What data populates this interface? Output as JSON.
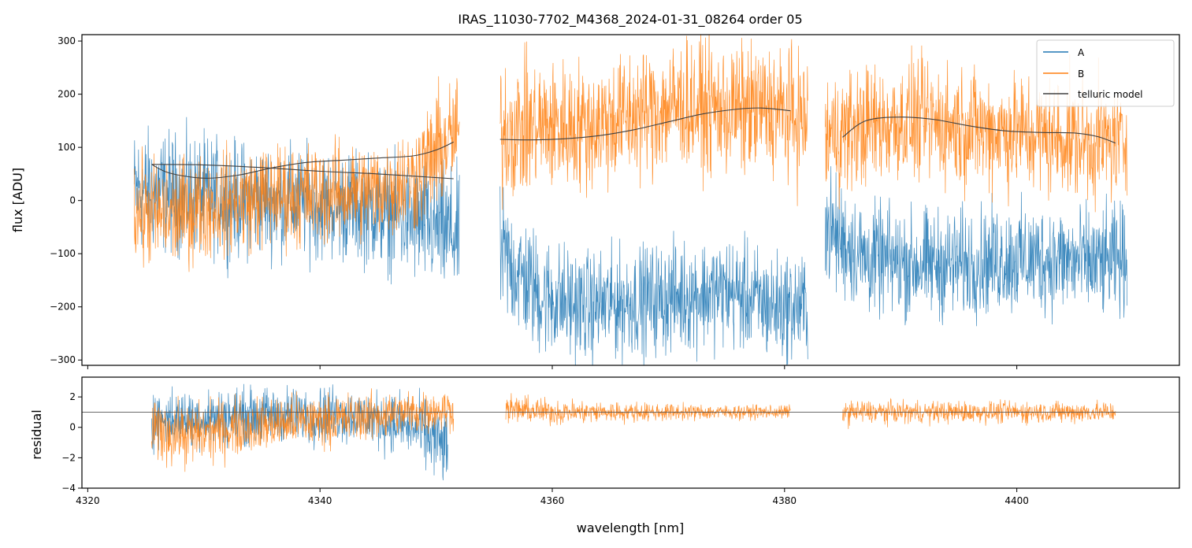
{
  "chart_data": {
    "type": "line",
    "title": "IRAS_11030-7702_M4368_2024-01-31_08264  order 05",
    "xlabel": "wavelength [nm]",
    "top_panel": {
      "ylabel": "flux [ADU]",
      "ylim": [
        -310,
        312
      ],
      "yticks": [
        300,
        200,
        100,
        0,
        -100,
        -200,
        -300
      ],
      "ytick_labels": [
        "300",
        "200",
        "100",
        "0",
        "−100",
        "−200",
        "−300"
      ],
      "legend": {
        "location": "top-right",
        "entries": [
          {
            "label": "A",
            "color": "#1f77b4"
          },
          {
            "label": "B",
            "color": "#ff7f0e"
          },
          {
            "label": "telluric model",
            "color": "#404040"
          }
        ]
      },
      "series": [
        {
          "name": "A",
          "color": "#1f77b4",
          "segments": [
            {
              "x": [
                4324.0,
                4327.0,
                4330.0,
                4333.0,
                4336.0,
                4339.0,
                4342.0,
                4345.0,
                4348.0,
                4350.0,
                4352.0
              ],
              "center": [
                20,
                15,
                10,
                0,
                0,
                -5,
                -10,
                -20,
                -40,
                -50,
                -70
              ],
              "spread": [
                110,
                110,
                105,
                105,
                100,
                100,
                100,
                100,
                110,
                120,
                120
              ]
            },
            {
              "x": [
                4355.5,
                4359.0,
                4363.0,
                4367.0,
                4371.0,
                4375.0,
                4379.0,
                4382.0
              ],
              "center": [
                -100,
                -180,
                -200,
                -190,
                -180,
                -170,
                -200,
                -200
              ],
              "spread": [
                120,
                110,
                100,
                100,
                100,
                100,
                100,
                100
              ]
            },
            {
              "x": [
                4383.5,
                4387.0,
                4391.0,
                4395.0,
                4399.0,
                4403.0,
                4407.0,
                4409.5
              ],
              "center": [
                -50,
                -110,
                -120,
                -120,
                -110,
                -110,
                -120,
                -110
              ],
              "spread": [
                110,
                100,
                100,
                100,
                100,
                100,
                100,
                100
              ]
            }
          ]
        },
        {
          "name": "B",
          "color": "#ff7f0e",
          "segments": [
            {
              "x": [
                4324.0,
                4327.0,
                4330.0,
                4333.0,
                4336.0,
                4339.0,
                4342.0,
                4345.0,
                4348.0,
                4350.0,
                4352.0
              ],
              "center": [
                -20,
                -30,
                -10,
                0,
                10,
                10,
                15,
                20,
                40,
                90,
                130
              ],
              "spread": [
                100,
                100,
                95,
                95,
                95,
                95,
                90,
                90,
                100,
                110,
                110
              ]
            },
            {
              "x": [
                4355.5,
                4359.0,
                4363.0,
                4367.0,
                4371.0,
                4375.0,
                4379.0,
                4382.0
              ],
              "center": [
                130,
                140,
                140,
                160,
                180,
                170,
                170,
                150
              ],
              "spread": [
                130,
                120,
                120,
                120,
                120,
                120,
                120,
                120
              ]
            },
            {
              "x": [
                4383.5,
                4387.0,
                4391.0,
                4395.0,
                4399.0,
                4403.0,
                4407.0,
                4409.5
              ],
              "center": [
                120,
                140,
                150,
                140,
                130,
                120,
                110,
                110
              ],
              "spread": [
                120,
                110,
                110,
                110,
                110,
                110,
                110,
                100
              ]
            }
          ]
        }
      ],
      "telluric_models": [
        {
          "x": [
            4325.5,
            4327.0,
            4330.0,
            4333.0,
            4336.0,
            4339.0,
            4342.0,
            4345.0,
            4348.0,
            4350.0,
            4351.5
          ],
          "y": [
            68,
            52,
            42,
            48,
            62,
            72,
            76,
            80,
            84,
            95,
            110
          ]
        },
        {
          "x": [
            4325.5,
            4330.0,
            4335.0,
            4340.0,
            4345.0,
            4351.5
          ],
          "y": [
            68,
            67,
            62,
            55,
            50,
            41
          ]
        },
        {
          "x": [
            4355.5,
            4358.0,
            4361.0,
            4364.0,
            4367.0,
            4370.0,
            4373.0,
            4376.0,
            4378.0,
            4380.5
          ],
          "y": [
            115,
            114,
            116,
            122,
            133,
            148,
            163,
            172,
            174,
            169
          ]
        },
        {
          "x": [
            4385.0,
            4387.0,
            4390.0,
            4393.0,
            4396.0,
            4399.0,
            4402.0,
            4405.0,
            4407.0,
            4408.5
          ],
          "y": [
            119,
            150,
            157,
            152,
            140,
            131,
            128,
            127,
            120,
            108
          ]
        }
      ]
    },
    "bottom_panel": {
      "ylabel": "residual",
      "ylim": [
        -4,
        3.3
      ],
      "yticks": [
        2,
        0,
        -2,
        -4
      ],
      "ytick_labels": [
        "2",
        "0",
        "−2",
        "−4"
      ],
      "reference_line": 1,
      "series": [
        {
          "name": "A",
          "color": "#1f77b4",
          "segments": [
            {
              "x": [
                4325.5,
                4329.0,
                4333.0,
                4337.0,
                4341.0,
                4345.0,
                4348.0,
                4350.0,
                4351.0
              ],
              "center": [
                0.5,
                0.6,
                0.7,
                0.8,
                0.9,
                0.5,
                0.0,
                -0.8,
                -1.5
              ],
              "spread": [
                1.8,
                1.8,
                1.8,
                1.8,
                1.8,
                1.8,
                2.0,
                2.4,
                2.6
              ]
            }
          ]
        },
        {
          "name": "B",
          "color": "#ff7f0e",
          "segments": [
            {
              "x": [
                4325.5,
                4329.0,
                4333.0,
                4337.0,
                4341.0,
                4345.0,
                4348.0,
                4351.5
              ],
              "center": [
                -0.2,
                -0.5,
                0.0,
                0.3,
                0.5,
                0.8,
                1.0,
                1.2
              ],
              "spread": [
                2.0,
                2.0,
                1.8,
                1.7,
                1.6,
                1.5,
                1.4,
                1.3
              ]
            },
            {
              "x": [
                4356.0,
                4360.0,
                4364.0,
                4368.0,
                4372.0,
                4376.0,
                4380.5
              ],
              "center": [
                1.2,
                1.0,
                1.0,
                1.0,
                1.0,
                1.0,
                1.0
              ],
              "spread": [
                0.9,
                0.8,
                0.7,
                0.6,
                0.5,
                0.45,
                0.45
              ]
            },
            {
              "x": [
                4385.0,
                4389.0,
                4393.0,
                4397.0,
                4401.0,
                4405.0,
                4408.5
              ],
              "center": [
                1.0,
                1.0,
                1.0,
                1.0,
                1.0,
                1.0,
                1.0
              ],
              "spread": [
                0.8,
                0.7,
                0.7,
                0.7,
                0.7,
                0.7,
                0.7
              ]
            }
          ]
        }
      ]
    },
    "xlim": [
      4319.5,
      4414
    ],
    "xticks": [
      4320,
      4340,
      4360,
      4380,
      4400
    ],
    "xtick_labels": [
      "4320",
      "4340",
      "4360",
      "4380",
      "4400"
    ]
  }
}
